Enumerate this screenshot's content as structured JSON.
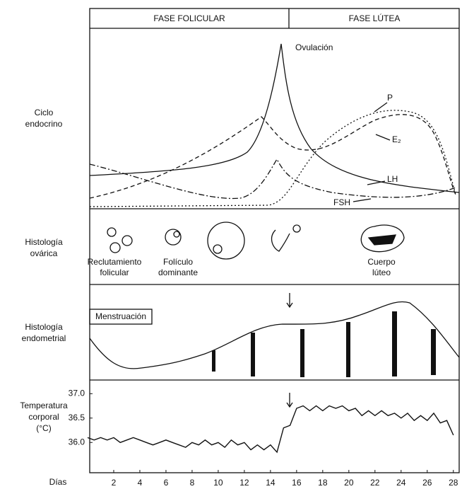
{
  "header": {
    "phases": [
      "FASE FOLICULAR",
      "FASE LÚTEA"
    ]
  },
  "rows": {
    "endocrine": [
      "Ciclo",
      "endocrino"
    ],
    "ovarian": [
      "Histología",
      "ovárica"
    ],
    "endometrial": [
      "Histología",
      "endometrial"
    ]
  },
  "endocrine": {
    "ovulation": "Ovulación",
    "curves": [
      "P",
      "E₂",
      "LH",
      "FSH"
    ]
  },
  "ovary": {
    "labels": [
      [
        "Reclutamiento",
        "folicular"
      ],
      [
        "Folículo",
        "dominante"
      ],
      [
        "Cuerpo",
        "lúteo"
      ]
    ]
  },
  "endometrium": {
    "label": "Menstruación"
  },
  "temperature_chart": {
    "type": "line",
    "y_label": [
      "Temperatura",
      "corporal",
      "(°C)"
    ],
    "x_label": "Días",
    "color": "#111111",
    "x": [
      0,
      0.5,
      1,
      1.5,
      2,
      2.5,
      3,
      3.5,
      4,
      4.5,
      5,
      5.5,
      6,
      6.5,
      7,
      7.5,
      8,
      8.5,
      9,
      9.5,
      10,
      10.5,
      11,
      11.5,
      12,
      12.5,
      13,
      13.5,
      14,
      14.5,
      15,
      15.5,
      16,
      16.5,
      17,
      17.5,
      18,
      18.5,
      19,
      19.5,
      20,
      20.5,
      21,
      21.5,
      22,
      22.5,
      23,
      23.5,
      24,
      24.5,
      25,
      25.5,
      26,
      26.5,
      27,
      27.5,
      28
    ],
    "values": [
      36.1,
      36.05,
      36.1,
      36.05,
      36.1,
      36.0,
      36.05,
      36.1,
      36.05,
      36.0,
      35.95,
      36.0,
      36.05,
      36.0,
      35.95,
      35.9,
      36.0,
      35.95,
      36.05,
      35.95,
      36.0,
      35.9,
      36.05,
      35.95,
      36.0,
      35.85,
      35.95,
      35.85,
      35.95,
      35.8,
      36.3,
      36.35,
      36.7,
      36.75,
      36.65,
      36.75,
      36.65,
      36.75,
      36.7,
      36.75,
      36.65,
      36.7,
      36.55,
      36.65,
      36.55,
      36.65,
      36.55,
      36.6,
      36.5,
      36.6,
      36.45,
      36.55,
      36.45,
      36.6,
      36.4,
      36.45,
      36.15
    ],
    "xlim": [
      0,
      28.5
    ],
    "ylim": [
      35.38,
      37.28
    ],
    "xticks": [
      2,
      4,
      6,
      8,
      10,
      12,
      14,
      16,
      18,
      20,
      22,
      24,
      26,
      28
    ],
    "yticks": [
      {
        "value": 36,
        "label": "36.0"
      },
      36.5,
      {
        "value": 37,
        "label": "37.0"
      }
    ]
  }
}
